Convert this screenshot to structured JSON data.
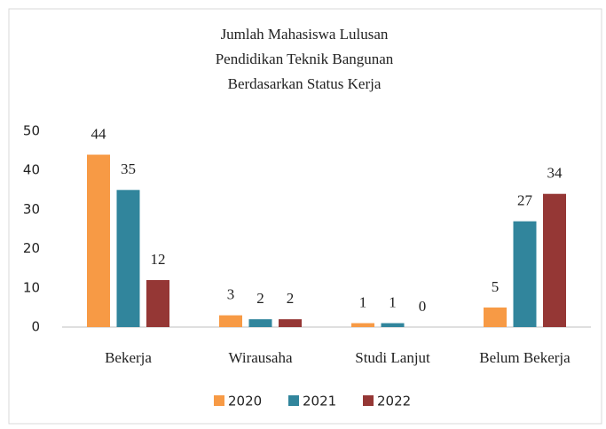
{
  "chart_data": {
    "type": "bar",
    "title": [
      "Jumlah Mahasiswa Lulusan",
      "Pendidikan Teknik Bangunan",
      "Berdasarkan Status Kerja"
    ],
    "categories": [
      "Bekerja",
      "Wirausaha",
      "Studi Lanjut",
      "Belum Bekerja"
    ],
    "series": [
      {
        "name": "2020",
        "color": "#f79a45",
        "values": [
          44,
          3,
          1,
          5
        ]
      },
      {
        "name": "2021",
        "color": "#31859c",
        "values": [
          35,
          2,
          1,
          27
        ]
      },
      {
        "name": "2022",
        "color": "#953735",
        "values": [
          12,
          2,
          0,
          34
        ]
      }
    ],
    "ylim": [
      0,
      50
    ],
    "yticks": [
      0,
      10,
      20,
      30,
      40,
      50
    ],
    "grid": false,
    "legend": "bottom"
  }
}
